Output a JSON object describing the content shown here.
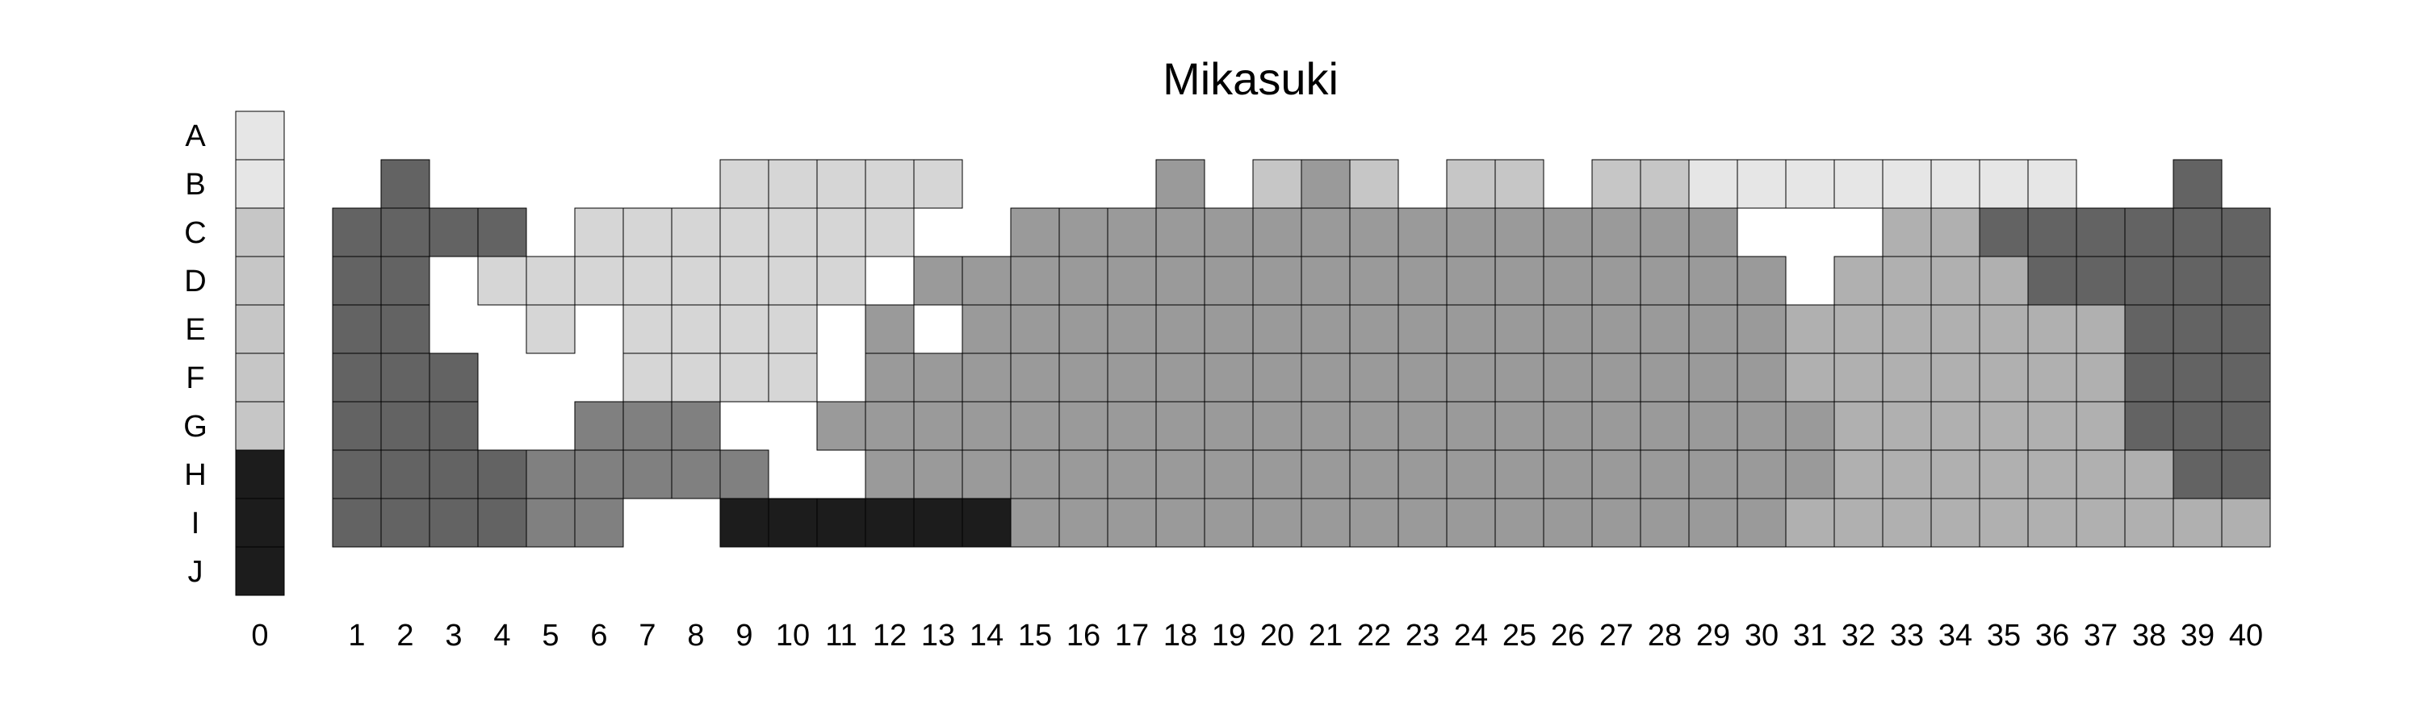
{
  "chart_data": {
    "type": "heatmap",
    "title": "Mikasuki",
    "row_labels": [
      "A",
      "B",
      "C",
      "D",
      "E",
      "F",
      "G",
      "H",
      "I",
      "J"
    ],
    "key_column_label": "0",
    "column_labels": [
      "1",
      "2",
      "3",
      "4",
      "5",
      "6",
      "7",
      "8",
      "9",
      "10",
      "11",
      "12",
      "13",
      "14",
      "15",
      "16",
      "17",
      "18",
      "19",
      "20",
      "21",
      "22",
      "23",
      "24",
      "25",
      "26",
      "27",
      "28",
      "29",
      "30",
      "31",
      "32",
      "33",
      "34",
      "35",
      "36",
      "37",
      "38",
      "39",
      "40"
    ],
    "key_column": [
      1,
      1,
      2,
      2,
      2,
      2,
      2,
      8,
      8,
      8
    ],
    "palette": {
      "1": "#e6e6e6",
      "2": "#c6c6c6",
      "3": "#d6d6d6",
      "4": "#9a9a9a",
      "5": "#b0b0b0",
      "6": "#636363",
      "7": "#808080",
      "8": "#1c1c1c"
    },
    "grid": [
      [
        0,
        0,
        0,
        0,
        0,
        0,
        0,
        0,
        0,
        0,
        0,
        0,
        0,
        0,
        0,
        0,
        0,
        0,
        0,
        0,
        0,
        0,
        0,
        0,
        0,
        0,
        0,
        0,
        0,
        0,
        0,
        0,
        0,
        0,
        0,
        0,
        0,
        0,
        0,
        0
      ],
      [
        0,
        6,
        0,
        0,
        0,
        0,
        0,
        0,
        3,
        3,
        3,
        3,
        3,
        0,
        0,
        0,
        0,
        4,
        0,
        2,
        4,
        2,
        0,
        2,
        2,
        0,
        2,
        2,
        1,
        1,
        1,
        1,
        1,
        1,
        1,
        1,
        0,
        0,
        6,
        0
      ],
      [
        6,
        6,
        6,
        6,
        0,
        3,
        3,
        3,
        3,
        3,
        3,
        3,
        0,
        0,
        4,
        4,
        4,
        4,
        4,
        4,
        4,
        4,
        4,
        4,
        4,
        4,
        4,
        4,
        4,
        0,
        0,
        0,
        5,
        5,
        6,
        6,
        6,
        6,
        6,
        6
      ],
      [
        6,
        6,
        0,
        3,
        3,
        3,
        3,
        3,
        3,
        3,
        3,
        0,
        4,
        4,
        4,
        4,
        4,
        4,
        4,
        4,
        4,
        4,
        4,
        4,
        4,
        4,
        4,
        4,
        4,
        4,
        0,
        5,
        5,
        5,
        5,
        6,
        6,
        6,
        6,
        6
      ],
      [
        6,
        6,
        0,
        0,
        3,
        0,
        3,
        3,
        3,
        3,
        0,
        4,
        0,
        4,
        4,
        4,
        4,
        4,
        4,
        4,
        4,
        4,
        4,
        4,
        4,
        4,
        4,
        4,
        4,
        4,
        5,
        5,
        5,
        5,
        5,
        5,
        5,
        6,
        6,
        6
      ],
      [
        6,
        6,
        6,
        0,
        0,
        0,
        3,
        3,
        3,
        3,
        0,
        4,
        4,
        4,
        4,
        4,
        4,
        4,
        4,
        4,
        4,
        4,
        4,
        4,
        4,
        4,
        4,
        4,
        4,
        4,
        5,
        5,
        5,
        5,
        5,
        5,
        5,
        6,
        6,
        6
      ],
      [
        6,
        6,
        6,
        0,
        0,
        7,
        7,
        7,
        0,
        0,
        4,
        4,
        4,
        4,
        4,
        4,
        4,
        4,
        4,
        4,
        4,
        4,
        4,
        4,
        4,
        4,
        4,
        4,
        4,
        4,
        4,
        5,
        5,
        5,
        5,
        5,
        5,
        6,
        6,
        6
      ],
      [
        6,
        6,
        6,
        6,
        7,
        7,
        7,
        7,
        7,
        0,
        0,
        4,
        4,
        4,
        4,
        4,
        4,
        4,
        4,
        4,
        4,
        4,
        4,
        4,
        4,
        4,
        4,
        4,
        4,
        4,
        4,
        5,
        5,
        5,
        5,
        5,
        5,
        5,
        6,
        6
      ],
      [
        6,
        6,
        6,
        6,
        7,
        7,
        0,
        0,
        8,
        8,
        8,
        8,
        8,
        8,
        4,
        4,
        4,
        4,
        4,
        4,
        4,
        4,
        4,
        4,
        4,
        4,
        4,
        4,
        4,
        4,
        5,
        5,
        5,
        5,
        5,
        5,
        5,
        5,
        5,
        5
      ],
      [
        0,
        0,
        0,
        0,
        0,
        0,
        0,
        0,
        0,
        0,
        0,
        0,
        0,
        0,
        0,
        0,
        0,
        0,
        0,
        0,
        0,
        0,
        0,
        0,
        0,
        0,
        0,
        0,
        0,
        0,
        0,
        0,
        0,
        0,
        0,
        0,
        0,
        0,
        0,
        0
      ]
    ]
  }
}
